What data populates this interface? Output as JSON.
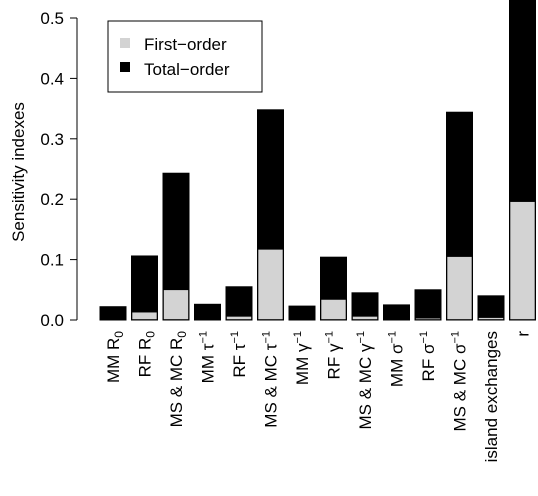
{
  "chart_data": {
    "type": "bar",
    "stacked": "overlay",
    "ylabel": "Sensitivity indexes",
    "ylim": [
      0,
      0.5
    ],
    "yticks": [
      "0.0",
      "0.1",
      "0.2",
      "0.3",
      "0.4",
      "0.5"
    ],
    "ytick_values": [
      0,
      0.1,
      0.2,
      0.3,
      0.4,
      0.5
    ],
    "categories": [
      {
        "base": "MM R",
        "sub": "0",
        "sup": ""
      },
      {
        "base": "RF R",
        "sub": "0",
        "sup": ""
      },
      {
        "base": "MS & MC R",
        "sub": "0",
        "sup": ""
      },
      {
        "base": "MM τ",
        "sub": "",
        "sup": "−1"
      },
      {
        "base": "RF τ",
        "sub": "",
        "sup": "−1"
      },
      {
        "base": "MS & MC τ",
        "sub": "",
        "sup": "−1"
      },
      {
        "base": "MM γ",
        "sub": "",
        "sup": "−1"
      },
      {
        "base": "RF γ",
        "sub": "",
        "sup": "−1"
      },
      {
        "base": "MS & MC γ",
        "sub": "",
        "sup": "−1"
      },
      {
        "base": "MM σ",
        "sub": "",
        "sup": "−1"
      },
      {
        "base": "RF σ",
        "sub": "",
        "sup": "−1"
      },
      {
        "base": "MS & MC σ",
        "sub": "",
        "sup": "−1"
      },
      {
        "base": "island exchanges",
        "sub": "",
        "sup": ""
      },
      {
        "base": "r",
        "sub": "",
        "sup": ""
      }
    ],
    "series": [
      {
        "name": "First−order",
        "color": "#d3d3d3",
        "values": [
          0.0,
          0.013,
          0.05,
          0.0,
          0.006,
          0.117,
          0.0,
          0.034,
          0.006,
          0.0,
          0.003,
          0.105,
          0.004,
          0.196
        ]
      },
      {
        "name": "Total−order",
        "color": "#000000",
        "values": [
          0.022,
          0.106,
          0.243,
          0.026,
          0.055,
          0.348,
          0.023,
          0.104,
          0.045,
          0.025,
          0.05,
          0.344,
          0.04,
          0.53
        ]
      }
    ],
    "legend_position": "top-left",
    "grid": false
  }
}
